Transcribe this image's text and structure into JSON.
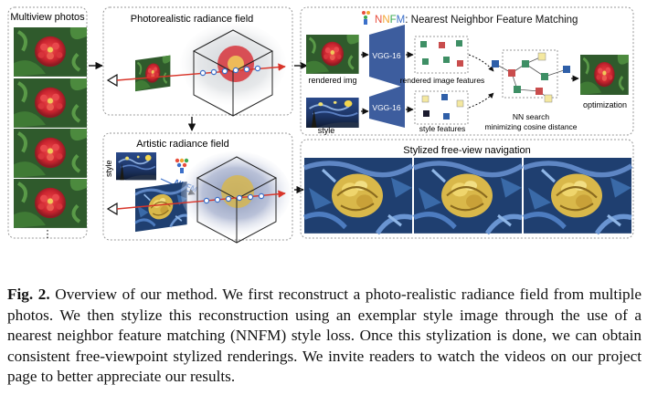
{
  "panels": {
    "photos": {
      "title": "Multiview photos",
      "ellipsis": "⋮"
    },
    "photoreal": {
      "title": "Photorealistic radiance field"
    },
    "artistic": {
      "title": "Artistic radiance field",
      "style_label": "style",
      "nnfm_logo": "NNFM"
    },
    "nnfm": {
      "title_prefix": "NNFM",
      "title_rest": ": Nearest Neighbor Feature Matching",
      "rendered_img": "rendered img",
      "style": "style",
      "vgg_top": "VGG-16",
      "vgg_bottom": "VGG-16",
      "rendered_features": "rendered image features",
      "style_features": "style features",
      "nn_search_line1": "NN search",
      "nn_search_line2": "minimizing cosine distance",
      "optimization": "optimization"
    },
    "nav": {
      "title": "Stylized free-view navigation"
    }
  },
  "caption": {
    "label": "Fig. 2.",
    "text": " Overview of our method. We first reconstruct a photo-realistic radiance field from multiple photos. We then stylize this reconstruction using an exemplar style image through the use of a nearest neighbor feature matching (NNFM) style loss. Once this stylization is done, we can obtain consistent free-viewpoint stylized renderings. We invite readers to watch the videos on our project page to better appreciate our results."
  },
  "colors": {
    "vgg": "#3d5d9e",
    "arrow": "#111111",
    "ray": "#d8352a",
    "feature_green": "#3e8f65",
    "feature_red": "#c94d4d",
    "feature_yellow": "#f4e8a0",
    "feature_blue": "#2f5fa8",
    "feature_dark": "#1a1a2e",
    "nnfm_n1": "#e84d3c",
    "nnfm_n2": "#f2a530",
    "nnfm_f": "#3aa84f",
    "nnfm_m": "#3b6fc9"
  }
}
